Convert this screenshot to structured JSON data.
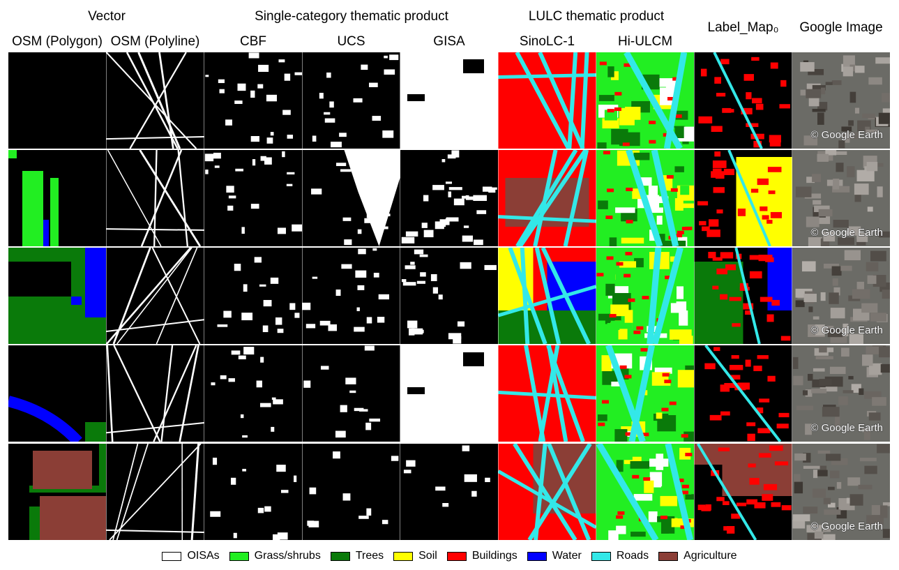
{
  "header": {
    "groups": [
      "Vector",
      "Single-category thematic product",
      "LULC thematic product"
    ],
    "columns": [
      "OSM (Polygon)",
      "OSM (Polyline)",
      "CBF",
      "UCS",
      "GISA",
      "SinoLC-1",
      "Hi-ULCM",
      "Label_Map₀",
      "Google Image"
    ]
  },
  "watermarks": [
    "© Google Earth",
    "© Google Earth",
    "© Google Earth",
    "© Google Earth",
    "© Google Earth"
  ],
  "legend": [
    {
      "label": "OISAs",
      "color": "#ffffff"
    },
    {
      "label": "Grass/shrubs",
      "color": "#22ee22"
    },
    {
      "label": "Trees",
      "color": "#0a7a0a"
    },
    {
      "label": "Soil",
      "color": "#ffff00"
    },
    {
      "label": "Buildings",
      "color": "#ff0000"
    },
    {
      "label": "Water",
      "color": "#0000ff"
    },
    {
      "label": "Roads",
      "color": "#33e8e8"
    },
    {
      "label": "Agriculture",
      "color": "#8b3e36"
    }
  ]
}
